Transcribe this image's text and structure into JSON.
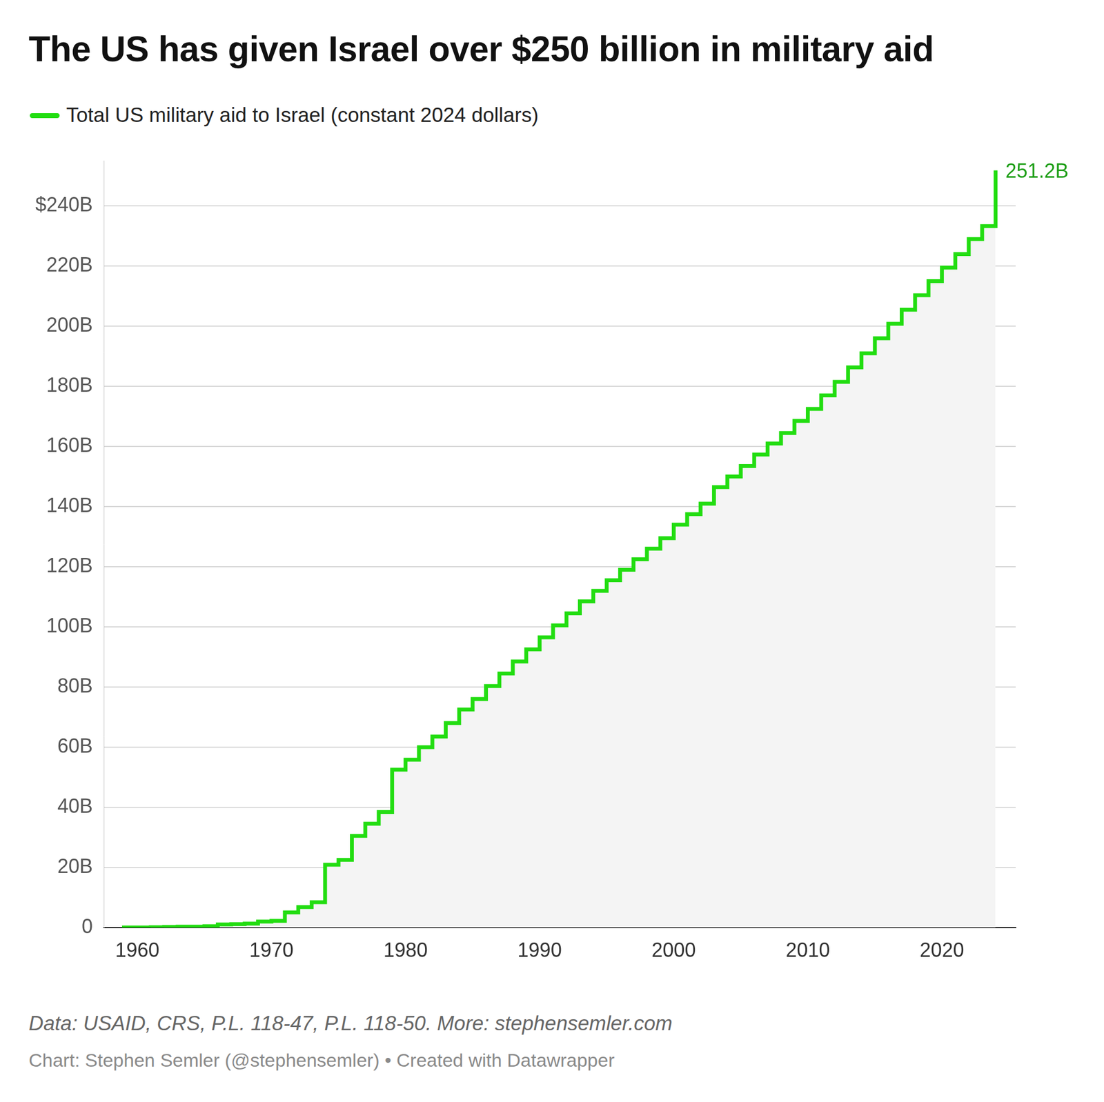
{
  "chart_data": {
    "type": "area",
    "title": "The US has given Israel over $250 billion in military aid",
    "source": "Data: USAID, CRS, P.L. 118-47, P.L. 118-50. More: stephensemler.com",
    "credit": "Chart: Stephen Semler (@stephensemler) • Created with Datawrapper",
    "x": [
      1959,
      1960,
      1961,
      1962,
      1963,
      1964,
      1965,
      1966,
      1967,
      1968,
      1969,
      1970,
      1971,
      1972,
      1973,
      1974,
      1975,
      1976,
      1977,
      1978,
      1979,
      1980,
      1981,
      1982,
      1983,
      1984,
      1985,
      1986,
      1987,
      1988,
      1989,
      1990,
      1991,
      1992,
      1993,
      1994,
      1995,
      1996,
      1997,
      1998,
      1999,
      2000,
      2001,
      2002,
      2003,
      2004,
      2005,
      2006,
      2007,
      2008,
      2009,
      2010,
      2011,
      2012,
      2013,
      2014,
      2015,
      2016,
      2017,
      2018,
      2019,
      2020,
      2021,
      2022,
      2023,
      2024
    ],
    "series": [
      {
        "name": "Total US military aid to Israel (constant 2024 dollars)",
        "color": "#22dd11",
        "values": [
          0,
          0,
          0.1,
          0.2,
          0.3,
          0.3,
          0.4,
          1.0,
          1.1,
          1.3,
          2.0,
          2.2,
          5.0,
          6.8,
          8.4,
          20.9,
          22.5,
          30.5,
          34.5,
          38.4,
          52.5,
          55.8,
          60.0,
          63.5,
          68.0,
          72.5,
          76.0,
          80.3,
          84.5,
          88.5,
          92.5,
          96.5,
          100.5,
          104.5,
          108.5,
          112.0,
          115.5,
          119.0,
          122.5,
          126.0,
          129.5,
          134.0,
          137.5,
          141.0,
          146.5,
          150.0,
          153.5,
          157.3,
          161.0,
          164.5,
          168.5,
          172.5,
          177.0,
          181.5,
          186.3,
          191.0,
          196.0,
          200.8,
          205.5,
          210.3,
          215.0,
          219.5,
          224.0,
          229.0,
          233.3,
          251.2
        ]
      }
    ],
    "xlim": [
      1957.5,
      2025.5
    ],
    "xticks": [
      1960,
      1970,
      1980,
      1990,
      2000,
      2010,
      2020
    ],
    "ylim": [
      0,
      255
    ],
    "yticks": [
      0,
      {
        "value": 20,
        "label": "20B"
      },
      {
        "value": 40,
        "label": "40B"
      },
      {
        "value": 60,
        "label": "60B"
      },
      {
        "value": 80,
        "label": "80B"
      },
      {
        "value": 100,
        "label": "100B"
      },
      {
        "value": 120,
        "label": "120B"
      },
      {
        "value": 140,
        "label": "140B"
      },
      {
        "value": 160,
        "label": "160B"
      },
      {
        "value": 180,
        "label": "180B"
      },
      {
        "value": 200,
        "label": "200B"
      },
      {
        "value": 220,
        "label": "220B"
      },
      {
        "value": 240,
        "label": "$240B"
      }
    ],
    "grid": true,
    "legend": "top-left",
    "line_style": "stepped",
    "annotations": [
      {
        "text": "251.2B",
        "x": 2024,
        "y": 251.2
      }
    ]
  }
}
